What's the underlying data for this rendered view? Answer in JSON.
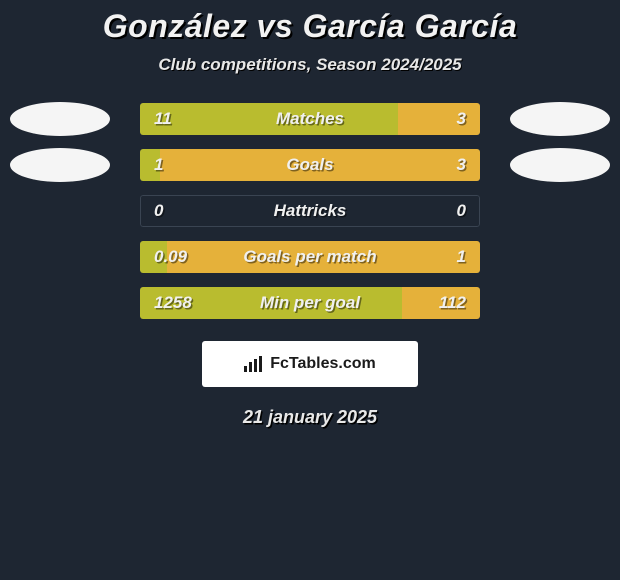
{
  "header": {
    "title": "González vs García García",
    "subtitle": "Club competitions, Season 2024/2025"
  },
  "colors": {
    "left_bar": "#b9bc2f",
    "right_bar": "#e5b13a",
    "background": "#1e2632",
    "avatar_bg": "#f5f5f5"
  },
  "stats": [
    {
      "label": "Matches",
      "left_val": "11",
      "right_val": "3",
      "left_pct": 76,
      "right_pct": 24,
      "show_avatars": true
    },
    {
      "label": "Goals",
      "left_val": "1",
      "right_val": "3",
      "left_pct": 6,
      "right_pct": 94,
      "show_avatars": true
    },
    {
      "label": "Hattricks",
      "left_val": "0",
      "right_val": "0",
      "left_pct": 0,
      "right_pct": 0,
      "show_avatars": false
    },
    {
      "label": "Goals per match",
      "left_val": "0.09",
      "right_val": "1",
      "left_pct": 8,
      "right_pct": 92,
      "show_avatars": false
    },
    {
      "label": "Min per goal",
      "left_val": "1258",
      "right_val": "112",
      "left_pct": 77,
      "right_pct": 23,
      "show_avatars": false
    }
  ],
  "brand": {
    "text": "FcTables.com"
  },
  "date": "21 january 2025"
}
